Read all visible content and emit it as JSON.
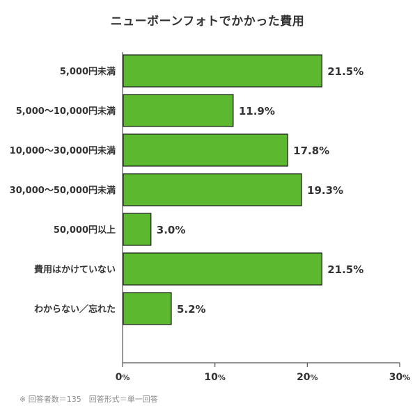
{
  "chart_data": {
    "type": "bar",
    "orientation": "horizontal",
    "title": "ニューボーンフォトでかかった費用",
    "categories": [
      "5,000円未満",
      "5,000〜10,000円未満",
      "10,000〜30,000円未満",
      "30,000〜50,000円未満",
      "50,000円以上",
      "費用はかけていない",
      "わからない／忘れた"
    ],
    "values": [
      21.5,
      11.9,
      17.8,
      19.3,
      3.0,
      21.5,
      5.2
    ],
    "value_labels": [
      "21.5%",
      "11.9%",
      "17.8%",
      "19.3%",
      "3.0%",
      "21.5%",
      "5.2%"
    ],
    "xlim": [
      0,
      30
    ],
    "xticks": [
      0,
      10,
      20,
      30
    ],
    "xtick_suffix": "%",
    "grid": false,
    "bar_color": "#5cb82e",
    "bar_border_color": "#1a1a1a"
  },
  "note": "※ 回答者数＝135　回答形式＝単一回答"
}
